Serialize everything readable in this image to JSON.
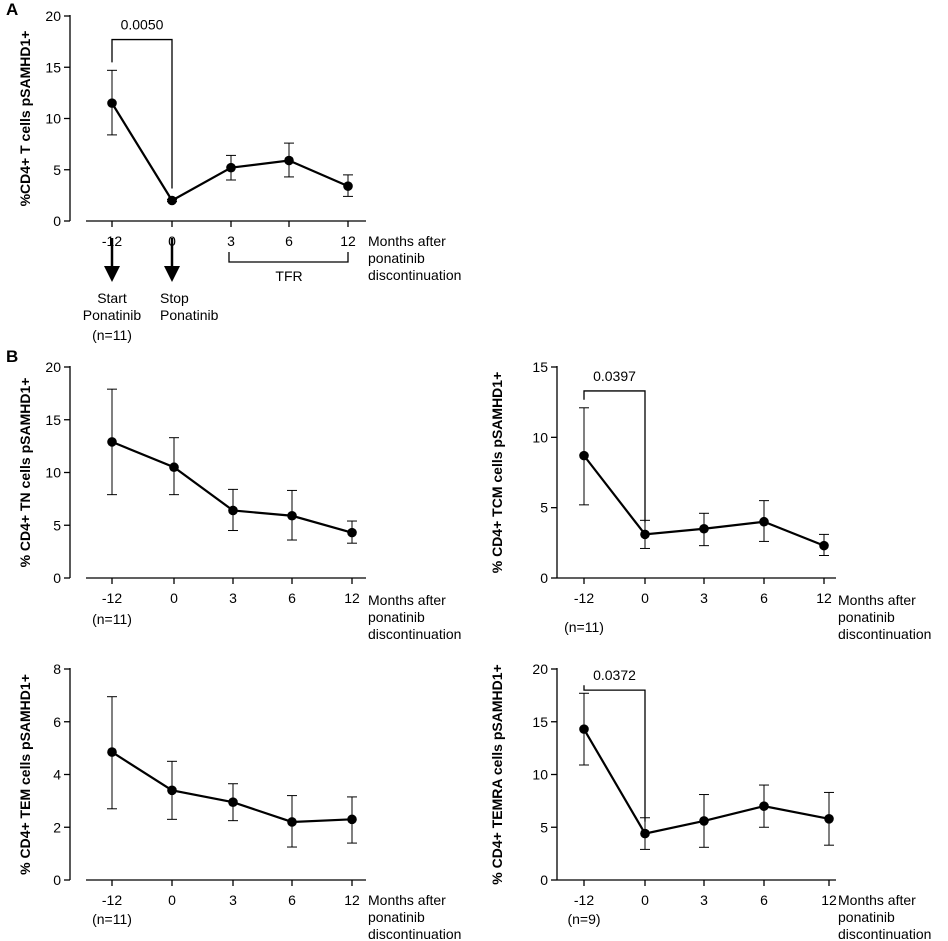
{
  "panel_labels": {
    "a": "A",
    "b": "B"
  },
  "annotations_a": {
    "start_label_1": "Start",
    "start_label_2": "Ponatinib",
    "stop_label_1": "Stop",
    "stop_label_2": "Ponatinib",
    "tfr_label": "TFR"
  },
  "chart_data": [
    {
      "id": "A",
      "type": "line",
      "ylabel": "%CD4+ T cells pSAMHD1+",
      "xlabel": [
        "Months after",
        "ponatinib",
        "discontinuation"
      ],
      "categories": [
        "-12",
        "0",
        "3",
        "6",
        "12"
      ],
      "values": [
        11.5,
        2.0,
        5.2,
        5.9,
        3.4
      ],
      "err_low": [
        8.4,
        1.9,
        4.0,
        4.3,
        2.4
      ],
      "err_high": [
        14.7,
        2.1,
        6.4,
        7.6,
        4.5
      ],
      "ylim": [
        0,
        20
      ],
      "yticks": [
        "0",
        "5",
        "10",
        "15",
        "20"
      ],
      "n_label": "(n=11)",
      "bracket": {
        "label": "0.0050",
        "from": 0,
        "to": 1,
        "y": 17.7
      }
    },
    {
      "id": "B1",
      "type": "line",
      "ylabel": "% CD4+ TN cells pSAMHD1+",
      "xlabel": [
        "Months after",
        "ponatinib",
        "discontinuation"
      ],
      "categories": [
        "-12",
        "0",
        "3",
        "6",
        "12"
      ],
      "values": [
        12.9,
        10.5,
        6.4,
        5.9,
        4.3
      ],
      "err_low": [
        7.9,
        7.9,
        4.5,
        3.6,
        3.3
      ],
      "err_high": [
        17.9,
        13.3,
        8.4,
        8.3,
        5.4
      ],
      "ylim": [
        0,
        20
      ],
      "yticks": [
        "0",
        "5",
        "10",
        "15",
        "20"
      ],
      "n_label": "(n=11)"
    },
    {
      "id": "B2",
      "type": "line",
      "ylabel": "% CD4+ TCM cells pSAMHD1+",
      "xlabel": [
        "Months after",
        "ponatinib",
        "discontinuation"
      ],
      "categories": [
        "-12",
        "0",
        "3",
        "6",
        "12"
      ],
      "values": [
        8.7,
        3.1,
        3.5,
        4.0,
        2.3
      ],
      "err_low": [
        5.2,
        2.1,
        2.3,
        2.6,
        1.6
      ],
      "err_high": [
        12.1,
        4.1,
        4.6,
        5.5,
        3.1
      ],
      "ylim": [
        0,
        15
      ],
      "yticks": [
        "0",
        "5",
        "10",
        "15"
      ],
      "n_label": "(n=11)",
      "bracket": {
        "label": "0.0397",
        "from": 0,
        "to": 1,
        "y": 13.3
      }
    },
    {
      "id": "B3",
      "type": "line",
      "ylabel": "% CD4+ TEM cells pSAMHD1+",
      "xlabel": [
        "Months after",
        "ponatinib",
        "discontinuation"
      ],
      "categories": [
        "-12",
        "0",
        "3",
        "6",
        "12"
      ],
      "values": [
        4.85,
        3.4,
        2.95,
        2.2,
        2.3
      ],
      "err_low": [
        2.7,
        2.3,
        2.25,
        1.25,
        1.4
      ],
      "err_high": [
        6.95,
        4.5,
        3.65,
        3.2,
        3.15
      ],
      "ylim": [
        0,
        8
      ],
      "yticks": [
        "0",
        "2",
        "4",
        "6",
        "8"
      ],
      "n_label": "(n=11)"
    },
    {
      "id": "B4",
      "type": "line",
      "ylabel": "% CD4+ TEMRA cells pSAMHD1+",
      "xlabel": [
        "Months after",
        "ponatinib",
        "discontinuation"
      ],
      "categories": [
        "-12",
        "0",
        "3",
        "6",
        "12"
      ],
      "values": [
        14.3,
        4.4,
        5.6,
        7.0,
        5.8
      ],
      "err_low": [
        10.9,
        2.9,
        3.1,
        5.0,
        3.3
      ],
      "err_high": [
        17.7,
        5.9,
        8.1,
        9.0,
        8.3
      ],
      "ylim": [
        0,
        20
      ],
      "yticks": [
        "0",
        "5",
        "10",
        "15",
        "20"
      ],
      "n_label": "(n=9)",
      "bracket": {
        "label": "0.0372",
        "from": 0,
        "to": 1,
        "y": 18.0
      }
    }
  ]
}
